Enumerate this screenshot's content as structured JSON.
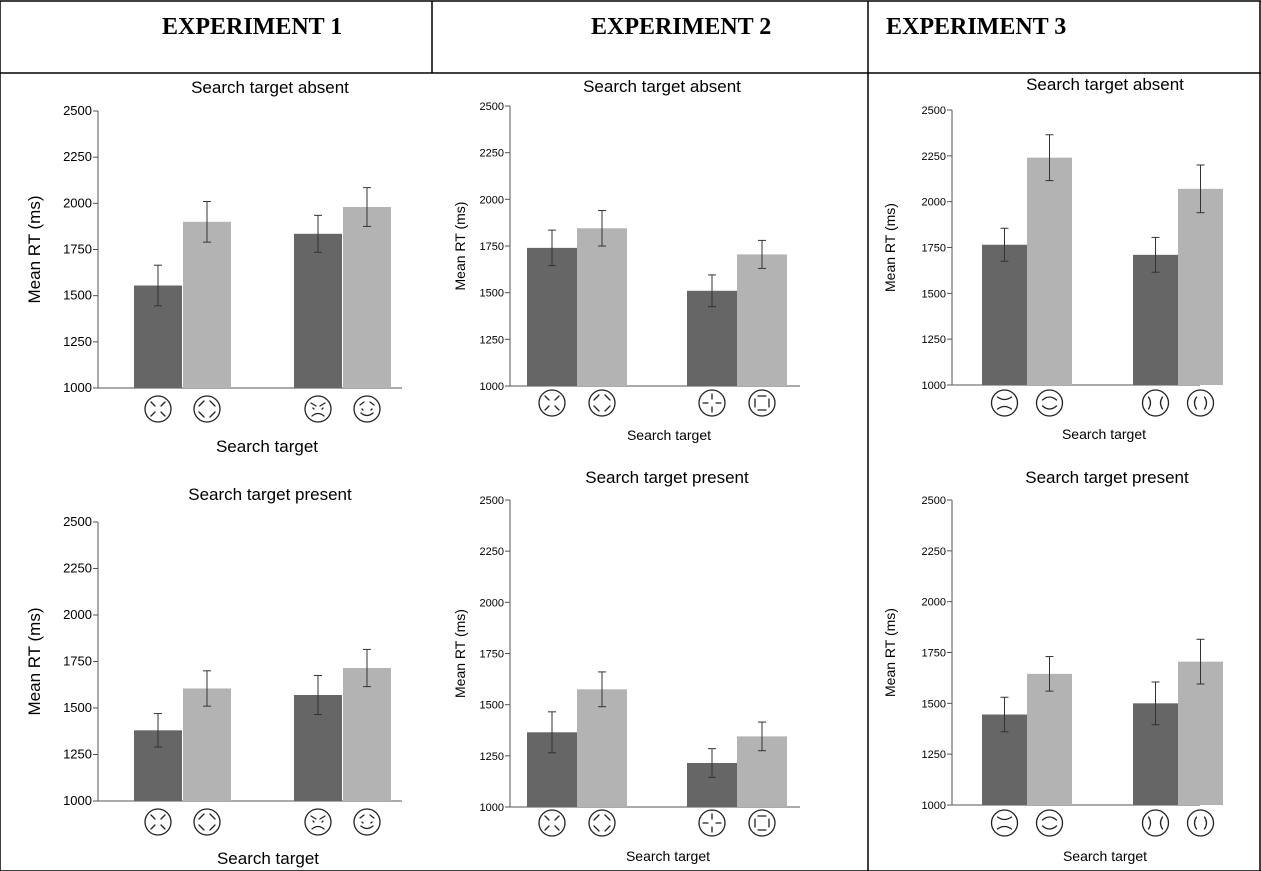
{
  "headers": [
    "EXPERIMENT 1",
    "EXPERIMENT 2",
    "EXPERIMENT 3"
  ],
  "colors": {
    "dark_bar": "#666666",
    "light_bar": "#b3b3b3",
    "error_bar": "#333333",
    "border": "#000000"
  },
  "chart_data": [
    {
      "type": "bar",
      "experiment": "EXPERIMENT 1",
      "title": "Search target absent",
      "xlabel": "Search target",
      "ylabel": "Mean RT (ms)",
      "ylim": [
        1000,
        2500
      ],
      "yticks": [
        1000,
        1250,
        1500,
        1750,
        2000,
        2250,
        2500
      ],
      "groups": [
        {
          "bars": [
            {
              "value": 1555,
              "error": 110,
              "icon": "x-features-face-icon"
            },
            {
              "value": 1900,
              "error": 110,
              "icon": "diamond-features-face-icon"
            }
          ]
        },
        {
          "bars": [
            {
              "value": 1835,
              "error": 100,
              "icon": "angry-face-icon"
            },
            {
              "value": 1980,
              "error": 105,
              "icon": "happy-face-icon"
            }
          ]
        }
      ]
    },
    {
      "type": "bar",
      "experiment": "EXPERIMENT 2",
      "title": "Search target absent",
      "xlabel": "Search target",
      "ylabel": "Mean RT (ms)",
      "ylim": [
        1000,
        2500
      ],
      "yticks": [
        1000,
        1250,
        1500,
        1750,
        2000,
        2250,
        2500
      ],
      "groups": [
        {
          "bars": [
            {
              "value": 1740,
              "error": 95,
              "icon": "x-features-face-icon"
            },
            {
              "value": 1845,
              "error": 95,
              "icon": "diamond-features-face-icon"
            }
          ]
        },
        {
          "bars": [
            {
              "value": 1510,
              "error": 85,
              "icon": "cross-features-face-icon"
            },
            {
              "value": 1705,
              "error": 75,
              "icon": "square-features-face-icon"
            }
          ]
        }
      ]
    },
    {
      "type": "bar",
      "experiment": "EXPERIMENT 3",
      "title": "Search target absent",
      "xlabel": "Search target",
      "ylabel": "Mean RT (ms)",
      "ylim": [
        1000,
        2500
      ],
      "yticks": [
        1000,
        1250,
        1500,
        1750,
        2000,
        2250,
        2500
      ],
      "groups": [
        {
          "bars": [
            {
              "value": 1765,
              "error": 90,
              "icon": "frown-brow-face-icon"
            },
            {
              "value": 2240,
              "error": 125,
              "icon": "smile-brow-face-icon"
            }
          ]
        },
        {
          "bars": [
            {
              "value": 1710,
              "error": 95,
              "icon": "inward-parens-face-icon"
            },
            {
              "value": 2070,
              "error": 130,
              "icon": "outward-parens-face-icon"
            }
          ]
        }
      ]
    },
    {
      "type": "bar",
      "experiment": "EXPERIMENT 1",
      "title": "Search target present",
      "xlabel": "Search target",
      "ylabel": "Mean RT (ms)",
      "ylim": [
        1000,
        2500
      ],
      "yticks": [
        1000,
        1250,
        1500,
        1750,
        2000,
        2250,
        2500
      ],
      "groups": [
        {
          "bars": [
            {
              "value": 1380,
              "error": 90,
              "icon": "x-features-face-icon"
            },
            {
              "value": 1605,
              "error": 95,
              "icon": "diamond-features-face-icon"
            }
          ]
        },
        {
          "bars": [
            {
              "value": 1570,
              "error": 105,
              "icon": "angry-face-icon"
            },
            {
              "value": 1715,
              "error": 100,
              "icon": "happy-face-icon"
            }
          ]
        }
      ]
    },
    {
      "type": "bar",
      "experiment": "EXPERIMENT 2",
      "title": "Search target present",
      "xlabel": "Search target",
      "ylabel": "Mean RT (ms)",
      "ylim": [
        1000,
        2500
      ],
      "yticks": [
        1000,
        1250,
        1500,
        1750,
        2000,
        2250,
        2500
      ],
      "groups": [
        {
          "bars": [
            {
              "value": 1365,
              "error": 100,
              "icon": "x-features-face-icon"
            },
            {
              "value": 1575,
              "error": 85,
              "icon": "diamond-features-face-icon"
            }
          ]
        },
        {
          "bars": [
            {
              "value": 1215,
              "error": 70,
              "icon": "cross-features-face-icon"
            },
            {
              "value": 1345,
              "error": 70,
              "icon": "square-features-face-icon"
            }
          ]
        }
      ]
    },
    {
      "type": "bar",
      "experiment": "EXPERIMENT 3",
      "title": "Search target present",
      "xlabel": "Search target",
      "ylabel": "Mean RT (ms)",
      "ylim": [
        1000,
        2500
      ],
      "yticks": [
        1000,
        1250,
        1500,
        1750,
        2000,
        2250,
        2500
      ],
      "groups": [
        {
          "bars": [
            {
              "value": 1445,
              "error": 85,
              "icon": "frown-brow-face-icon"
            },
            {
              "value": 1645,
              "error": 85,
              "icon": "smile-brow-face-icon"
            }
          ]
        },
        {
          "bars": [
            {
              "value": 1500,
              "error": 105,
              "icon": "inward-parens-face-icon"
            },
            {
              "value": 1705,
              "error": 110,
              "icon": "outward-parens-face-icon"
            }
          ]
        }
      ]
    }
  ]
}
